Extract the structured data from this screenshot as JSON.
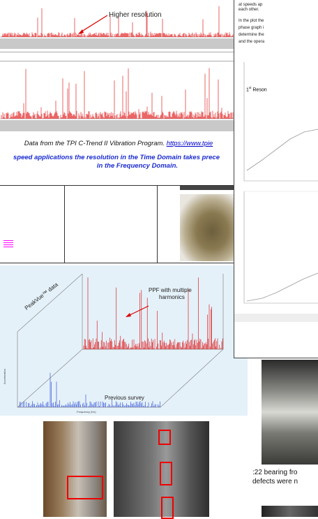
{
  "spectrum_panel": {
    "annotation": "Higher resolution",
    "caption": "Data from the TPI C-Trend II Vibration Program. ",
    "link": "https://www.tpie",
    "note_line1": "speed applications the resolution in the Time Domain takes prece",
    "note_line2": "in the Frequency Domain."
  },
  "peakvue_panel": {
    "label": "PeakVue™ data",
    "annotation": "PPF with multiple harmonics",
    "previous": "Previous survey",
    "x_axis": "Frequency (Hz)",
    "y_axis": "Acceleration"
  },
  "right_document": {
    "lines": [
      "at speeds ap",
      "each other.",
      "In the plot the",
      "phase graph i",
      "determine the",
      "and the opera"
    ],
    "chart_label_num": "1",
    "chart_label_sup": "st",
    "chart_label_rest": " Reson"
  },
  "bottom_caption": {
    "line1": ":22 bearing fro",
    "line2": "defects were n"
  }
}
